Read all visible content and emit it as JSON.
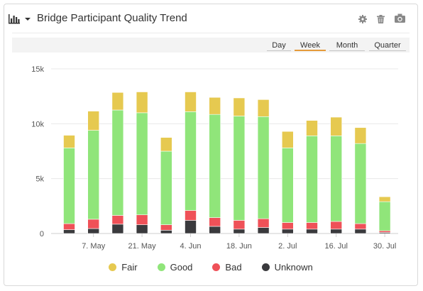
{
  "header": {
    "title": "Bridge Participant Quality Trend",
    "chart_type_icon": "bar-chart-icon",
    "actions": [
      {
        "name": "settings",
        "icon": "gear-icon"
      },
      {
        "name": "delete",
        "icon": "trash-icon"
      },
      {
        "name": "screenshot",
        "icon": "camera-icon"
      }
    ]
  },
  "range": {
    "options": [
      "Day",
      "Week",
      "Month",
      "Quarter"
    ],
    "selected": "Week",
    "accent": "#e59b3b"
  },
  "colors": {
    "Fair": "#e6c950",
    "Good": "#90e57a",
    "Bad": "#ef5158",
    "Unknown": "#3a3a3d"
  },
  "chart_data": {
    "type": "bar",
    "stacked": true,
    "y_ticks": [
      "0",
      "5k",
      "10k",
      "15k"
    ],
    "x_tick_labels": [
      "7. May",
      "21. May",
      "4. Jun",
      "18. Jun",
      "2. Jul",
      "16. Jul",
      "30. Jul"
    ],
    "ylim": [
      0,
      15000
    ],
    "categories": [
      "30. Apr",
      "7. May",
      "14. May",
      "21. May",
      "28. May",
      "4. Jun",
      "11. Jun",
      "18. Jun",
      "25. Jun",
      "2. Jul",
      "9. Jul",
      "16. Jul",
      "23. Jul",
      "30. Jul"
    ],
    "series": [
      {
        "name": "Unknown",
        "values": [
          350,
          450,
          850,
          800,
          300,
          1200,
          650,
          400,
          550,
          400,
          400,
          400,
          400,
          100
        ]
      },
      {
        "name": "Bad",
        "values": [
          550,
          850,
          800,
          900,
          500,
          900,
          800,
          800,
          800,
          600,
          600,
          700,
          500,
          150
        ]
      },
      {
        "name": "Good",
        "values": [
          6900,
          8100,
          9600,
          9300,
          6700,
          9000,
          9400,
          9500,
          9300,
          6800,
          7900,
          7800,
          7300,
          2650
        ]
      },
      {
        "name": "Fair",
        "values": [
          1150,
          1750,
          1600,
          1900,
          1250,
          1800,
          1550,
          1650,
          1550,
          1500,
          1400,
          1700,
          1450,
          450
        ]
      }
    ],
    "legend": [
      "Fair",
      "Good",
      "Bad",
      "Unknown"
    ],
    "legend_position": "bottom-center",
    "grid": true
  }
}
